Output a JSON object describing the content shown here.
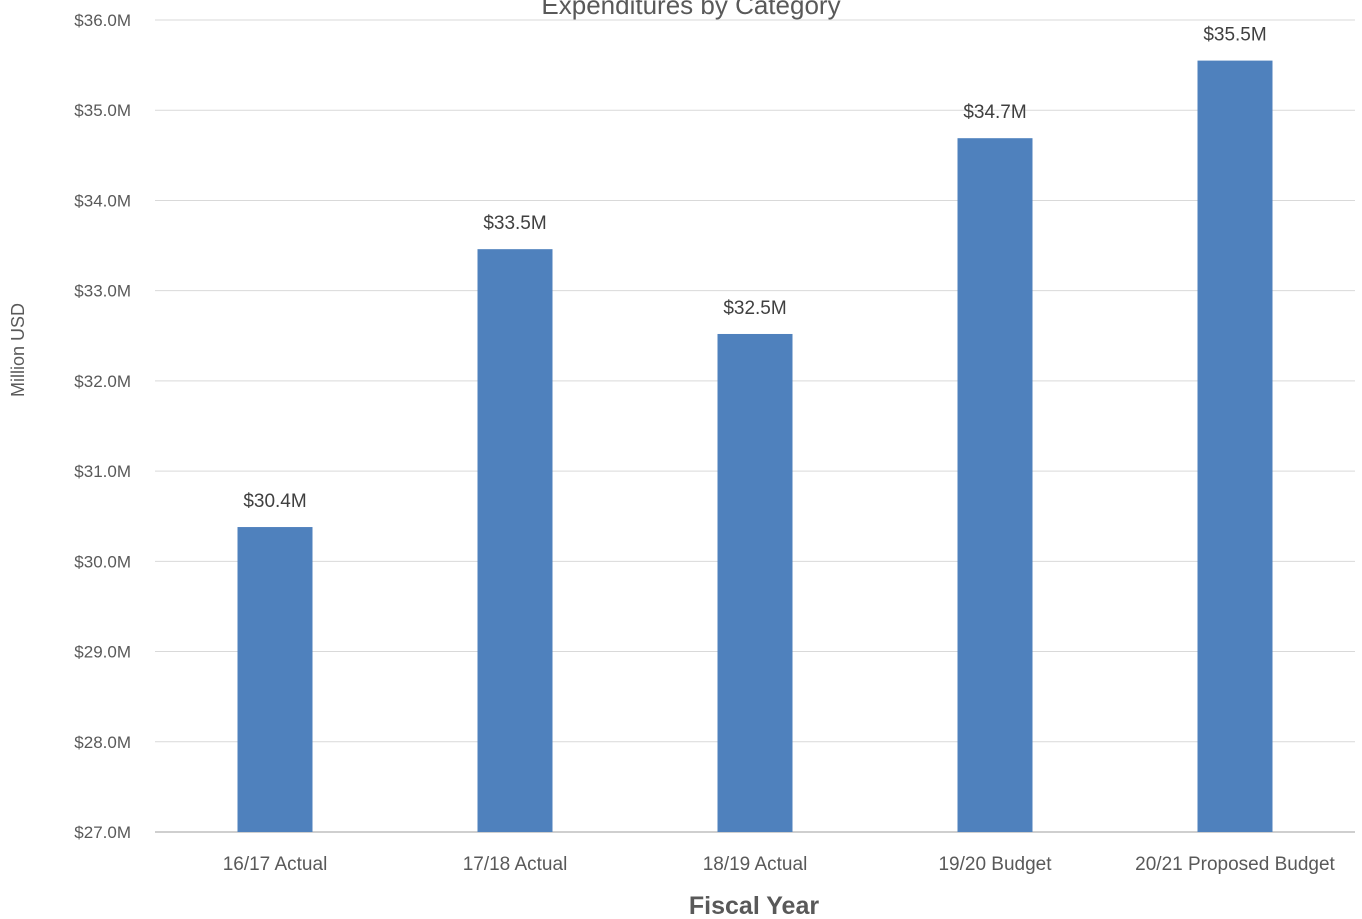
{
  "chart_data": {
    "type": "bar",
    "title": "Expenditures by Category",
    "xlabel": "Fiscal Year",
    "ylabel": "Million USD",
    "categories": [
      "16/17 Actual",
      "17/18 Actual",
      "18/19 Actual",
      "19/20 Budget",
      "20/21 Proposed Budget"
    ],
    "values": [
      30.38,
      33.46,
      32.52,
      34.69,
      35.55
    ],
    "data_labels": [
      "$30.4M",
      "$33.5M",
      "$32.5M",
      "$34.7M",
      "$35.5M"
    ],
    "ylim": [
      27,
      36
    ],
    "yticks": [
      27,
      28,
      29,
      30,
      31,
      32,
      33,
      34,
      35,
      36
    ],
    "ytick_labels": [
      "$27.0M",
      "$28.0M",
      "$29.0M",
      "$30.0M",
      "$31.0M",
      "$32.0M",
      "$33.0M",
      "$34.0M",
      "$35.0M",
      "$36.0M"
    ],
    "grid": true,
    "legend": "none",
    "bar_color": "#4f81bd"
  }
}
